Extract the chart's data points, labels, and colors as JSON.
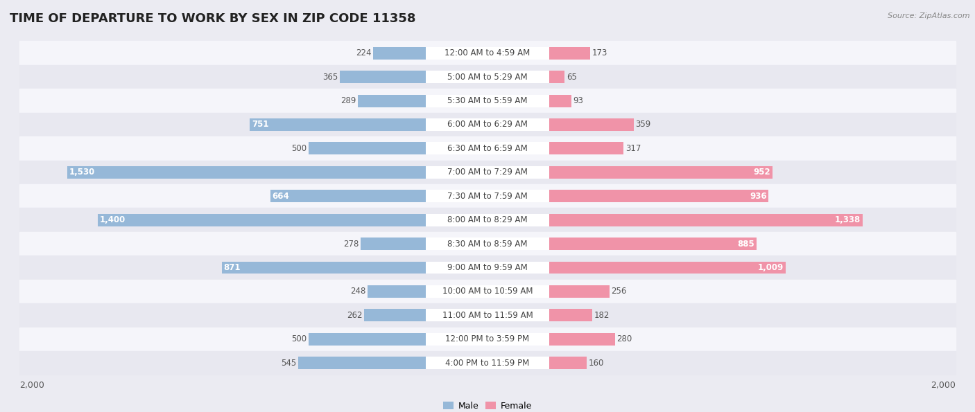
{
  "title": "TIME OF DEPARTURE TO WORK BY SEX IN ZIP CODE 11358",
  "source": "Source: ZipAtlas.com",
  "categories": [
    "12:00 AM to 4:59 AM",
    "5:00 AM to 5:29 AM",
    "5:30 AM to 5:59 AM",
    "6:00 AM to 6:29 AM",
    "6:30 AM to 6:59 AM",
    "7:00 AM to 7:29 AM",
    "7:30 AM to 7:59 AM",
    "8:00 AM to 8:29 AM",
    "8:30 AM to 8:59 AM",
    "9:00 AM to 9:59 AM",
    "10:00 AM to 10:59 AM",
    "11:00 AM to 11:59 AM",
    "12:00 PM to 3:59 PM",
    "4:00 PM to 11:59 PM"
  ],
  "male_values": [
    224,
    365,
    289,
    751,
    500,
    1530,
    664,
    1400,
    278,
    871,
    248,
    262,
    500,
    545
  ],
  "female_values": [
    173,
    65,
    93,
    359,
    317,
    952,
    936,
    1338,
    885,
    1009,
    256,
    182,
    280,
    160
  ],
  "male_color": "#96b8d8",
  "female_color": "#f093a8",
  "axis_max": 2000,
  "bg_color": "#ebebf2",
  "row_color_odd": "#f5f5fa",
  "row_color_even": "#e8e8f0",
  "title_fontsize": 13,
  "source_fontsize": 8,
  "value_fontsize": 8.5,
  "cat_fontsize": 8.5,
  "legend_fontsize": 9,
  "axis_label_fontsize": 9,
  "male_inside_threshold": 600,
  "female_inside_threshold": 600
}
